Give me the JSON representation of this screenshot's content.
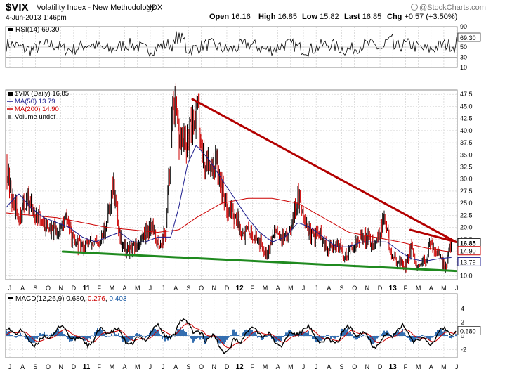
{
  "header": {
    "symbol": "$VIX",
    "name": "Volatility Index - New Methodology",
    "exchange": "INDX",
    "date": "4-Jun-2013 1:46pm",
    "open_label": "Open",
    "open": "16.16",
    "high_label": "High",
    "high": "16.85",
    "low_label": "Low",
    "low": "15.82",
    "last_label": "Last",
    "last": "16.85",
    "chg_label": "Chg",
    "chg": "+0.57 (+3.50%)",
    "brand": "@StockCharts.com",
    "brand_icon": "stockcharts-logo-icon"
  },
  "colors": {
    "price_up": "#000000",
    "price_down": "#cc0000",
    "ma50": "#1a1a8c",
    "ma200": "#cc0000",
    "rsi_line": "#000000",
    "macd_line": "#000000",
    "macd_signal": "#cc0000",
    "histogram": "#1f5fa8",
    "trendline_red": "#b30000",
    "trendline_green": "#1f8a1f",
    "grid": "#c8c8c8"
  },
  "rsi_panel": {
    "label": "RSI(14) 69.30",
    "current": "69.30",
    "ticks": [
      "90",
      "70",
      "50",
      "30",
      "10"
    ]
  },
  "price_panel": {
    "legend": [
      "$VIX (Daily) 16.85",
      "MA(50) 13.79",
      "MA(200) 14.90",
      "Volume undef"
    ],
    "tags": [
      "16.85",
      "14.90",
      "13.79"
    ],
    "ticks": [
      "47.5",
      "45.0",
      "42.5",
      "40.0",
      "37.5",
      "35.0",
      "32.5",
      "30.0",
      "27.5",
      "25.0",
      "22.5",
      "20.0",
      "17.5",
      "15.0",
      "12.5",
      "10.0"
    ],
    "months": [
      "J",
      "A",
      "S",
      "O",
      "N",
      "D",
      "11",
      "F",
      "M",
      "A",
      "M",
      "J",
      "J",
      "A",
      "S",
      "O",
      "N",
      "D",
      "12",
      "F",
      "M",
      "A",
      "M",
      "J",
      "J",
      "A",
      "S",
      "O",
      "N",
      "D",
      "13",
      "F",
      "M",
      "A",
      "M",
      "J"
    ]
  },
  "macd_panel": {
    "label": "MACD(12,26,9) 0.680, 0.276, 0.403",
    "label_parts": [
      "MACD(12,26,9) ",
      "0.680",
      ", ",
      "0.276",
      ", ",
      "0.403"
    ],
    "current": "0.680",
    "ticks": [
      "4",
      "2",
      "0",
      "-2"
    ],
    "months": [
      "J",
      "A",
      "S",
      "O",
      "N",
      "D",
      "11",
      "F",
      "M",
      "A",
      "M",
      "J",
      "J",
      "A",
      "S",
      "O",
      "N",
      "D",
      "12",
      "F",
      "M",
      "A",
      "M",
      "J",
      "J",
      "A",
      "S",
      "O",
      "N",
      "D",
      "13",
      "F",
      "M",
      "A",
      "M",
      "J"
    ]
  },
  "chart_data": {
    "type": "line",
    "title": "$VIX Volatility Index - New Methodology INDX",
    "x_start": "2010-07",
    "x_end": "2013-06",
    "ylim": [
      10,
      48
    ],
    "series": [
      {
        "name": "$VIX (Daily)",
        "last": 16.85,
        "points": [
          [
            "2010-07-01",
            34
          ],
          [
            "2010-07-15",
            26
          ],
          [
            "2010-08-01",
            22
          ],
          [
            "2010-08-20",
            26
          ],
          [
            "2010-09-10",
            23
          ],
          [
            "2010-10-01",
            21
          ],
          [
            "2010-10-20",
            19
          ],
          [
            "2010-11-10",
            20
          ],
          [
            "2010-11-25",
            22
          ],
          [
            "2010-12-10",
            17
          ],
          [
            "2011-01-01",
            16
          ],
          [
            "2011-01-20",
            17
          ],
          [
            "2011-02-10",
            16
          ],
          [
            "2011-02-25",
            20
          ],
          [
            "2011-03-16",
            29
          ],
          [
            "2011-04-01",
            18
          ],
          [
            "2011-04-20",
            15
          ],
          [
            "2011-05-10",
            16
          ],
          [
            "2011-05-25",
            18
          ],
          [
            "2011-06-15",
            21
          ],
          [
            "2011-07-01",
            16
          ],
          [
            "2011-07-20",
            19
          ],
          [
            "2011-08-08",
            47
          ],
          [
            "2011-08-20",
            38
          ],
          [
            "2011-09-10",
            37
          ],
          [
            "2011-09-22",
            42
          ],
          [
            "2011-10-04",
            45
          ],
          [
            "2011-10-20",
            33
          ],
          [
            "2011-11-01",
            34
          ],
          [
            "2011-11-20",
            33
          ],
          [
            "2011-12-10",
            25
          ],
          [
            "2011-12-30",
            23
          ],
          [
            "2012-01-20",
            19
          ],
          [
            "2012-02-10",
            19
          ],
          [
            "2012-03-01",
            17
          ],
          [
            "2012-03-20",
            15
          ],
          [
            "2012-04-10",
            20
          ],
          [
            "2012-05-01",
            17
          ],
          [
            "2012-06-01",
            26
          ],
          [
            "2012-06-15",
            23
          ],
          [
            "2012-07-01",
            18
          ],
          [
            "2012-07-20",
            19
          ],
          [
            "2012-08-10",
            15
          ],
          [
            "2012-09-01",
            17
          ],
          [
            "2012-09-20",
            14
          ],
          [
            "2012-10-10",
            16
          ],
          [
            "2012-10-30",
            18
          ],
          [
            "2012-11-15",
            18
          ],
          [
            "2012-12-01",
            16
          ],
          [
            "2012-12-28",
            22
          ],
          [
            "2013-01-10",
            14
          ],
          [
            "2013-01-30",
            13
          ],
          [
            "2013-02-15",
            12
          ],
          [
            "2013-02-26",
            16
          ],
          [
            "2013-03-15",
            11
          ],
          [
            "2013-04-01",
            13
          ],
          [
            "2013-04-18",
            17
          ],
          [
            "2013-05-10",
            13
          ],
          [
            "2013-05-22",
            12
          ],
          [
            "2013-06-04",
            16.85
          ]
        ]
      },
      {
        "name": "MA(50)",
        "last": 13.79,
        "points": [
          [
            "2010-07-01",
            24
          ],
          [
            "2010-08-01",
            27
          ],
          [
            "2010-09-01",
            24
          ],
          [
            "2010-10-01",
            22
          ],
          [
            "2010-11-01",
            21
          ],
          [
            "2010-12-01",
            20
          ],
          [
            "2011-01-01",
            18
          ],
          [
            "2011-02-01",
            17
          ],
          [
            "2011-03-01",
            18
          ],
          [
            "2011-04-01",
            19
          ],
          [
            "2011-05-01",
            17
          ],
          [
            "2011-06-01",
            17
          ],
          [
            "2011-07-01",
            18
          ],
          [
            "2011-08-01",
            18
          ],
          [
            "2011-08-20",
            24
          ],
          [
            "2011-09-10",
            33
          ],
          [
            "2011-10-01",
            37
          ],
          [
            "2011-11-01",
            34
          ],
          [
            "2011-12-01",
            30
          ],
          [
            "2012-01-01",
            26
          ],
          [
            "2012-02-01",
            22
          ],
          [
            "2012-03-01",
            19
          ],
          [
            "2012-04-01",
            17
          ],
          [
            "2012-05-01",
            18
          ],
          [
            "2012-06-01",
            21
          ],
          [
            "2012-07-01",
            20
          ],
          [
            "2012-08-01",
            18
          ],
          [
            "2012-09-01",
            16
          ],
          [
            "2012-10-01",
            16
          ],
          [
            "2012-11-01",
            17
          ],
          [
            "2012-12-01",
            17
          ],
          [
            "2013-01-01",
            17
          ],
          [
            "2013-02-01",
            15
          ],
          [
            "2013-03-01",
            13.5
          ],
          [
            "2013-04-01",
            13
          ],
          [
            "2013-05-01",
            13.5
          ],
          [
            "2013-06-04",
            13.79
          ]
        ]
      },
      {
        "name": "MA(200)",
        "last": 14.9,
        "points": [
          [
            "2010-07-01",
            23
          ],
          [
            "2010-09-01",
            22.5
          ],
          [
            "2010-11-01",
            22
          ],
          [
            "2011-01-01",
            21
          ],
          [
            "2011-03-01",
            20
          ],
          [
            "2011-05-01",
            19.5
          ],
          [
            "2011-07-01",
            19
          ],
          [
            "2011-08-20",
            19.5
          ],
          [
            "2011-10-01",
            22
          ],
          [
            "2011-12-01",
            25
          ],
          [
            "2012-02-01",
            26
          ],
          [
            "2012-04-01",
            26
          ],
          [
            "2012-06-01",
            25
          ],
          [
            "2012-08-01",
            22
          ],
          [
            "2012-10-01",
            19
          ],
          [
            "2012-12-01",
            18
          ],
          [
            "2013-02-01",
            17
          ],
          [
            "2013-04-01",
            15.8
          ],
          [
            "2013-06-04",
            14.9
          ]
        ]
      },
      {
        "name": "Trend resistance",
        "points": [
          [
            "2011-09-22",
            46.5
          ],
          [
            "2013-06-15",
            17
          ]
        ]
      },
      {
        "name": "Trend support",
        "points": [
          [
            "2010-11-15",
            15
          ],
          [
            "2013-06-15",
            11
          ]
        ]
      },
      {
        "name": "Trend resistance 2",
        "points": [
          [
            "2013-02-26",
            19.5
          ],
          [
            "2013-06-15",
            17
          ]
        ]
      }
    ],
    "rsi": {
      "name": "RSI(14)",
      "last": 69.3,
      "ylim": [
        10,
        90
      ]
    },
    "macd": {
      "name": "MACD(12,26,9)",
      "macd": 0.68,
      "signal": 0.276,
      "histogram": 0.403,
      "ylim": [
        -3,
        6
      ]
    }
  }
}
